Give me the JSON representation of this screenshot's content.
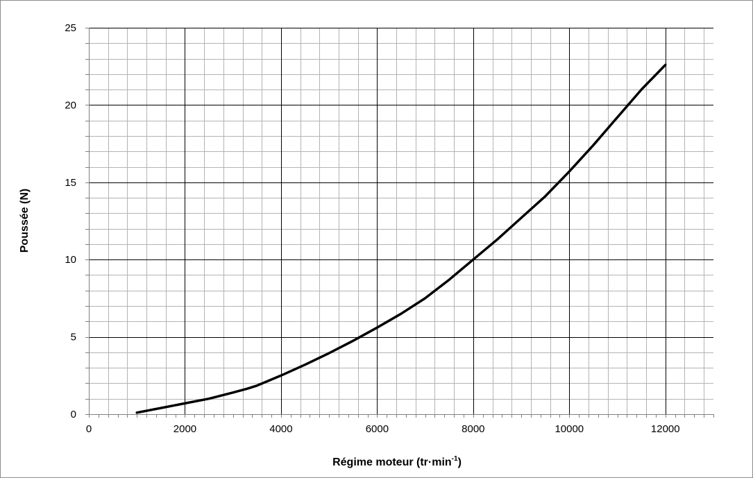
{
  "chart_data": {
    "type": "line",
    "title": "",
    "xlabel": "Régime moteur (tr·min⁻¹)",
    "xlabel_main": "Régime moteur (tr·min",
    "xlabel_sup": "-1",
    "xlabel_end": ")",
    "ylabel": "Poussée (N)",
    "xlim": [
      0,
      13000
    ],
    "ylim": [
      0,
      25
    ],
    "x_ticks": [
      0,
      2000,
      4000,
      6000,
      8000,
      10000,
      12000
    ],
    "x_tick_labels": [
      "0",
      "2000",
      "4000",
      "6000",
      "8000",
      "10000",
      "12000"
    ],
    "y_ticks": [
      0,
      5,
      10,
      15,
      20,
      25
    ],
    "y_tick_labels": [
      "0",
      "5",
      "10",
      "15",
      "20",
      "25"
    ],
    "x_major_step": 2000,
    "x_minor_step": 400,
    "y_minor_step": 1,
    "grid": true,
    "legend": "none",
    "series": [
      {
        "color": "#000000",
        "x": [
          1000,
          1500,
          2000,
          2500,
          3000,
          3300,
          3500,
          4000,
          4500,
          5000,
          5500,
          6000,
          6500,
          7000,
          7500,
          8000,
          8500,
          9000,
          9500,
          10000,
          10500,
          11000,
          11500,
          12000
        ],
        "y": [
          0.1,
          0.4,
          0.7,
          1.0,
          1.4,
          1.65,
          1.85,
          2.5,
          3.2,
          3.95,
          4.75,
          5.6,
          6.5,
          7.5,
          8.7,
          10.0,
          11.3,
          12.7,
          14.1,
          15.7,
          17.4,
          19.2,
          21.0,
          22.6
        ]
      }
    ]
  }
}
